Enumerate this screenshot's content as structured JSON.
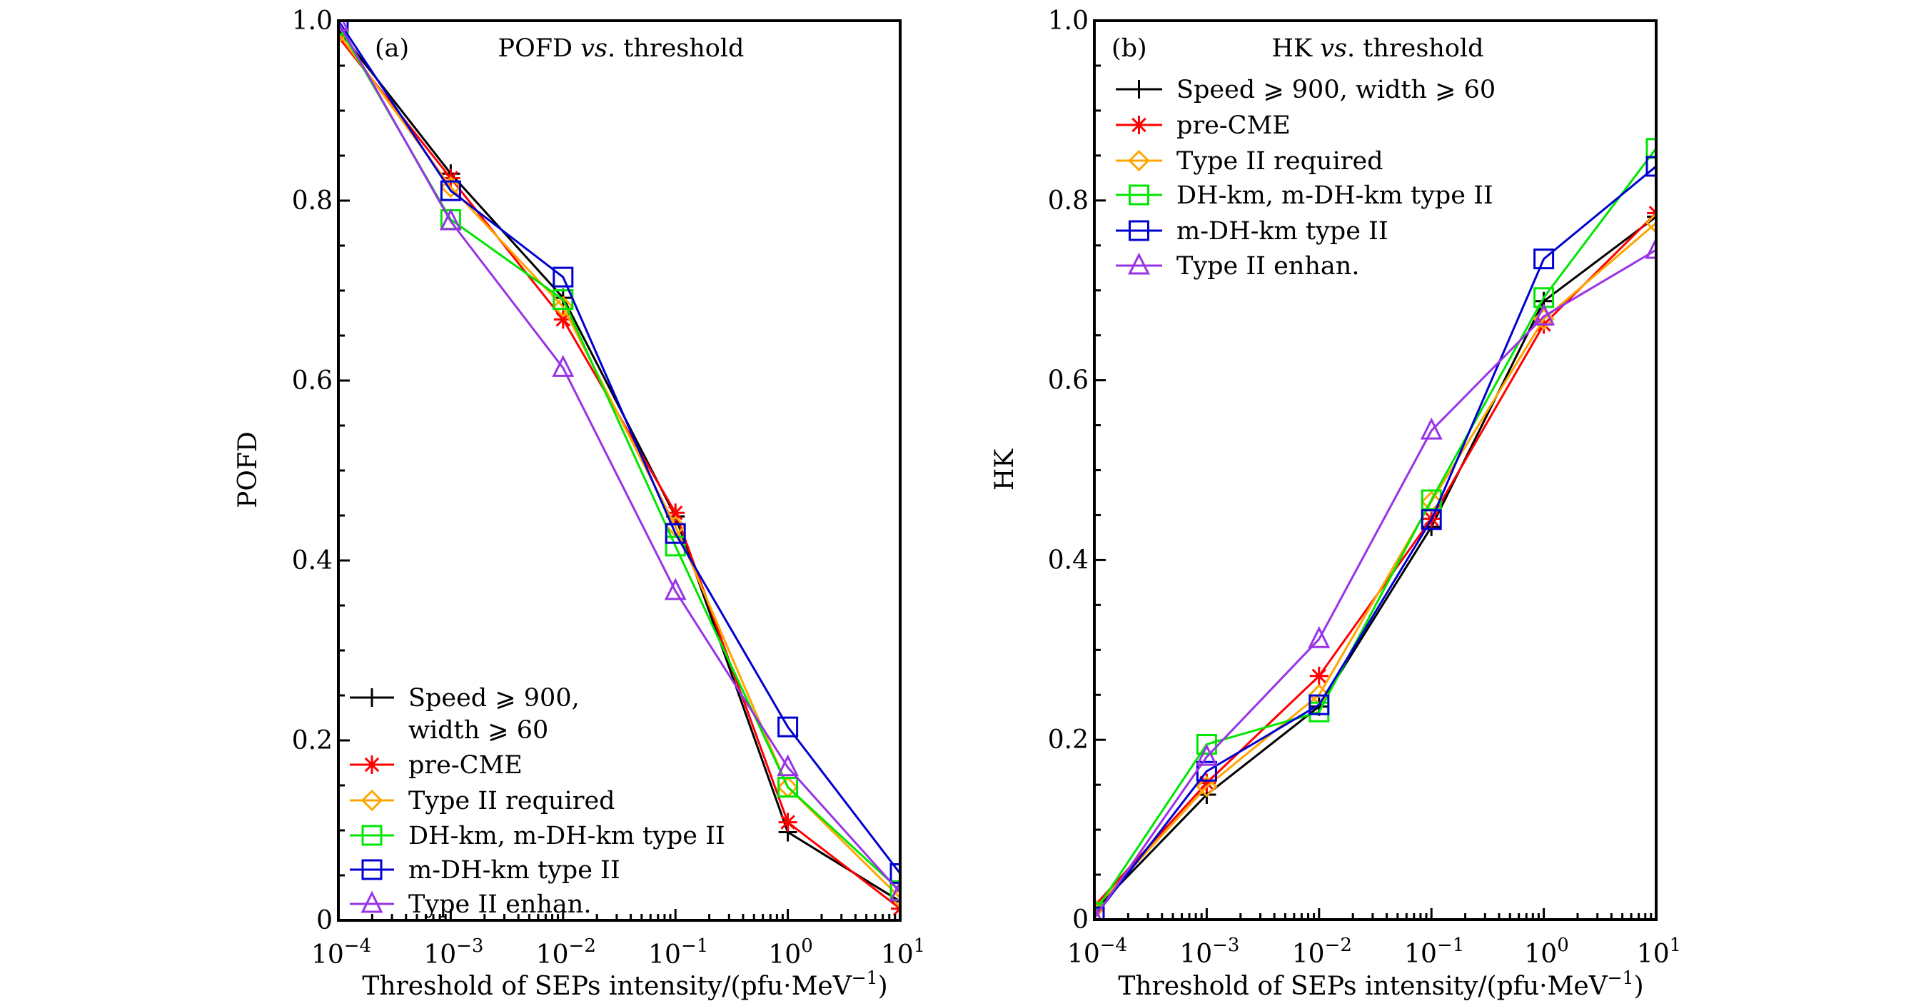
{
  "figure": {
    "panels_count": 2
  },
  "chart_data": [
    {
      "type": "line",
      "panel_tag": "(a)",
      "title_parts": [
        "POFD ",
        "vs",
        ". threshold"
      ],
      "title": "POFD vs. threshold",
      "xlabel": "Threshold of SEPs intensity/(pfu·MeV⁻¹)",
      "ylabel": "POFD",
      "xscale": "log",
      "x": [
        0.0001,
        0.001,
        0.01,
        0.1,
        1,
        10
      ],
      "xlim": [
        0.0001,
        10
      ],
      "ylim": [
        0,
        1.0
      ],
      "x_tick_labels": [
        {
          "base": "10",
          "exp": "−4"
        },
        {
          "base": "10",
          "exp": "−3"
        },
        {
          "base": "10",
          "exp": "−2"
        },
        {
          "base": "10",
          "exp": "−1"
        },
        {
          "base": "10",
          "exp": "0"
        },
        {
          "base": "10",
          "exp": "1"
        }
      ],
      "y_ticks": [
        0,
        0.2,
        0.4,
        0.6,
        0.8,
        1.0
      ],
      "y_tick_labels": [
        "0",
        "0.2",
        "0.4",
        "0.6",
        "0.8",
        "1.0"
      ],
      "grid": false,
      "legend_position": "lower-left",
      "legend_wrapped_first_entry": [
        "Speed ⩾ 900,",
        "width ⩾ 60"
      ],
      "series": [
        {
          "name": "Speed ⩾ 900, width ⩾ 60",
          "color": "#000000",
          "marker": "plus",
          "values": [
            0.99,
            0.83,
            0.692,
            0.449,
            0.098,
            0.021
          ]
        },
        {
          "name": "pre-CME",
          "color": "#ff0000",
          "marker": "asterisk",
          "values": [
            0.982,
            0.825,
            0.668,
            0.453,
            0.109,
            0.013
          ]
        },
        {
          "name": "Type II required",
          "color": "#ffa500",
          "marker": "diamond",
          "values": [
            0.986,
            0.815,
            0.682,
            0.438,
            0.148,
            0.025
          ]
        },
        {
          "name": "DH-km, m-DH-km type II",
          "color": "#00e600",
          "marker": "square",
          "values": [
            0.995,
            0.779,
            0.69,
            0.416,
            0.148,
            0.033
          ]
        },
        {
          "name": "m-DH-km type II",
          "color": "#0000d0",
          "marker": "square",
          "values": [
            1.0,
            0.811,
            0.715,
            0.43,
            0.215,
            0.052
          ]
        },
        {
          "name": "Type II enhan.",
          "color": "#9933e6",
          "marker": "triangle",
          "values": [
            0.998,
            0.777,
            0.614,
            0.366,
            0.17,
            0.031
          ]
        }
      ]
    },
    {
      "type": "line",
      "panel_tag": "(b)",
      "title_parts": [
        "HK ",
        "vs",
        ". threshold"
      ],
      "title": "HK vs. threshold",
      "xlabel": "Threshold of SEPs intensity/(pfu·MeV⁻¹)",
      "ylabel": "HK",
      "xscale": "log",
      "x": [
        0.0001,
        0.001,
        0.01,
        0.1,
        1,
        10
      ],
      "xlim": [
        0.0001,
        10
      ],
      "ylim": [
        0,
        1.0
      ],
      "x_tick_labels": [
        {
          "base": "10",
          "exp": "−4"
        },
        {
          "base": "10",
          "exp": "−3"
        },
        {
          "base": "10",
          "exp": "−2"
        },
        {
          "base": "10",
          "exp": "−1"
        },
        {
          "base": "10",
          "exp": "0"
        },
        {
          "base": "10",
          "exp": "1"
        }
      ],
      "y_ticks": [
        0,
        0.2,
        0.4,
        0.6,
        0.8,
        1.0
      ],
      "y_tick_labels": [
        "0",
        "0.2",
        "0.4",
        "0.6",
        "0.8",
        "1.0"
      ],
      "grid": false,
      "legend_position": "upper-left",
      "series": [
        {
          "name": "Speed ⩾ 900, width ⩾ 60",
          "color": "#000000",
          "marker": "plus",
          "values": [
            0.01,
            0.139,
            0.237,
            0.437,
            0.688,
            0.782
          ]
        },
        {
          "name": "pre-CME",
          "color": "#ff0000",
          "marker": "asterisk",
          "values": [
            0.015,
            0.152,
            0.271,
            0.446,
            0.662,
            0.786
          ]
        },
        {
          "name": "Type II required",
          "color": "#ffa500",
          "marker": "diamond",
          "values": [
            0.012,
            0.148,
            0.25,
            0.465,
            0.668,
            0.775
          ]
        },
        {
          "name": "DH-km, m-DH-km type II",
          "color": "#00e600",
          "marker": "square",
          "values": [
            0.008,
            0.195,
            0.231,
            0.467,
            0.692,
            0.858
          ]
        },
        {
          "name": "m-DH-km type II",
          "color": "#0000d0",
          "marker": "square",
          "values": [
            0.003,
            0.165,
            0.239,
            0.445,
            0.735,
            0.838
          ]
        },
        {
          "name": "Type II enhan.",
          "color": "#9933e6",
          "marker": "triangle",
          "values": [
            0.002,
            0.181,
            0.312,
            0.544,
            0.671,
            0.745
          ]
        }
      ]
    }
  ]
}
